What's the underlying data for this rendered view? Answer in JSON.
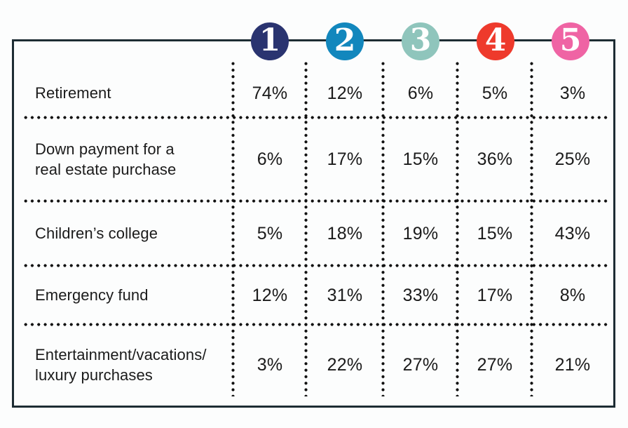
{
  "table": {
    "border_color": "#1d2c33",
    "dot_color": "#111111",
    "text_color": "#1b1b1b",
    "header_ranks": [
      {
        "label": "1",
        "color": "#2a3470"
      },
      {
        "label": "2",
        "color": "#1287bd"
      },
      {
        "label": "3",
        "color": "#8fc5bc"
      },
      {
        "label": "4",
        "color": "#ee3a2c"
      },
      {
        "label": "5",
        "color": "#ef64a4"
      }
    ],
    "rows": [
      {
        "label": "Retirement",
        "values": [
          "74%",
          "12%",
          "6%",
          "5%",
          "3%"
        ]
      },
      {
        "label": "Down payment for a\nreal estate purchase",
        "values": [
          "6%",
          "17%",
          "15%",
          "36%",
          "25%"
        ]
      },
      {
        "label": "Children’s college",
        "values": [
          "5%",
          "18%",
          "19%",
          "15%",
          "43%"
        ]
      },
      {
        "label": "Emergency fund",
        "values": [
          "12%",
          "31%",
          "33%",
          "17%",
          "8%"
        ]
      },
      {
        "label": "Entertainment/vacations/\nluxury purchases",
        "values": [
          "3%",
          "22%",
          "27%",
          "27%",
          "21%"
        ]
      }
    ]
  },
  "chart_data": {
    "type": "table",
    "columns": [
      "1",
      "2",
      "3",
      "4",
      "5"
    ],
    "unit": "%",
    "rows": [
      {
        "category": "Retirement",
        "values": [
          74,
          12,
          6,
          5,
          3
        ]
      },
      {
        "category": "Down payment for a real estate purchase",
        "values": [
          6,
          17,
          15,
          36,
          25
        ]
      },
      {
        "category": "Children's college",
        "values": [
          5,
          18,
          19,
          15,
          43
        ]
      },
      {
        "category": "Emergency fund",
        "values": [
          12,
          31,
          33,
          17,
          8
        ]
      },
      {
        "category": "Entertainment/vacations/luxury purchases",
        "values": [
          3,
          22,
          27,
          27,
          21
        ]
      }
    ]
  }
}
